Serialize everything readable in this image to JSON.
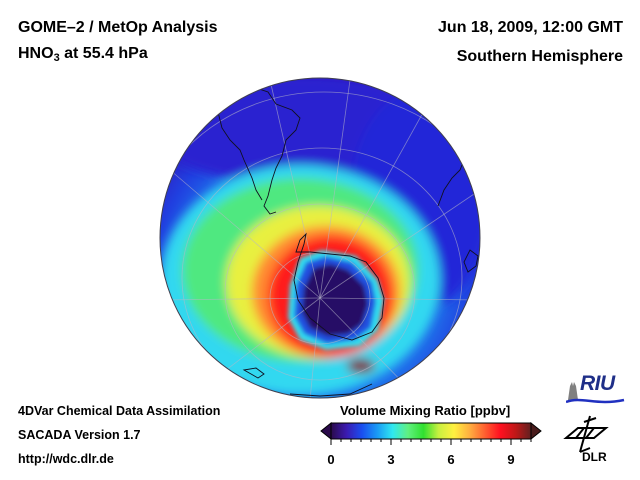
{
  "header": {
    "title": "GOME–2 / MetOp Analysis",
    "species_main": "HNO",
    "species_sub": "3",
    "species_rest": " at 55.4 hPa",
    "datetime": "Jun 18, 2009, 12:00 GMT",
    "region": "Southern Hemisphere"
  },
  "footer": {
    "line1": "4DVar Chemical Data Assimilation",
    "line2": "SACADA Version 1.7",
    "line3": "http://wdc.dlr.de"
  },
  "colorbar": {
    "label": "Volume Mixing Ratio [ppbv]",
    "min": 0,
    "max": 10,
    "ticks": [
      "0",
      "3",
      "6",
      "9"
    ],
    "tick_values": [
      0,
      3,
      6,
      9
    ],
    "colors": [
      "#2a0a4a",
      "#3b1ab0",
      "#1a4ef0",
      "#1a9af5",
      "#30e8f0",
      "#60f080",
      "#30e030",
      "#c8f040",
      "#fff040",
      "#ffb040",
      "#ff6030",
      "#ff1020",
      "#c01818",
      "#602020"
    ]
  },
  "map": {
    "projection": "orthographic south-polar",
    "description_colors": {
      "background": "#3010c0",
      "outer": "#2030e0",
      "mid": "#20a0f0",
      "collar_green": "#40e060",
      "collar_yellow": "#ffe040",
      "collar_red": "#ff2020",
      "vortex_core": "#250a60"
    }
  },
  "logos": {
    "riu": "RIU",
    "dlr": "DLR"
  }
}
